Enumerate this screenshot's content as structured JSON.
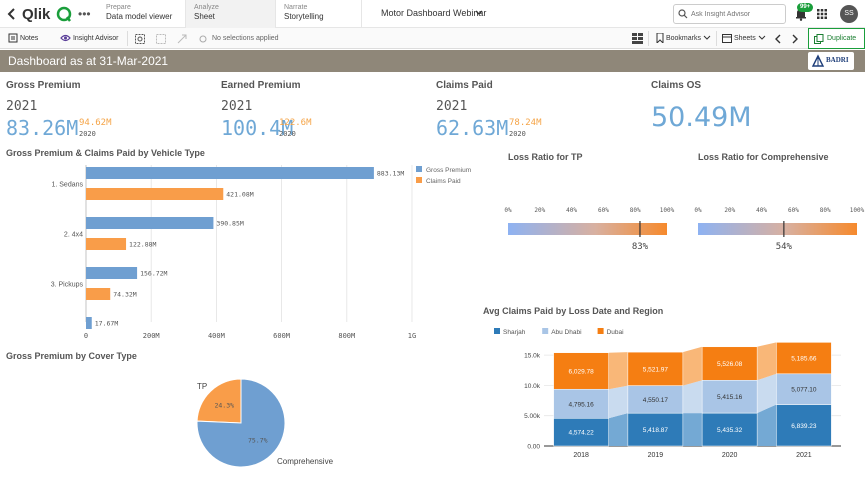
{
  "nav": {
    "prepare": {
      "sub": "Prepare",
      "main": "Data model viewer"
    },
    "analyze": {
      "sub": "Analyze",
      "main": "Sheet"
    },
    "narrate": {
      "sub": "Narrate",
      "main": "Storytelling"
    },
    "app_title": "Motor Dashboard Webinar",
    "search_placeholder": "Ask Insight Advisor",
    "notif_count": "99+",
    "avatar": "SS"
  },
  "toolbar": {
    "notes": "Notes",
    "insight": "Insight Advisor",
    "selections": "No selections applied",
    "bookmarks": "Bookmarks",
    "sheets": "Sheets",
    "duplicate": "Duplicate"
  },
  "sheet": {
    "title": "Dashboard as at 31-Mar-2021",
    "logo_text": "BADRI"
  },
  "kpis": [
    {
      "title": "Gross Premium",
      "year": "2021",
      "value": "83.26M",
      "alt_value": "94.62M",
      "alt_year": "2020"
    },
    {
      "title": "Earned Premium",
      "year": "2021",
      "value": "100.4M",
      "alt_value": "122.6M",
      "alt_year": "2020"
    },
    {
      "title": "Claims Paid",
      "year": "2021",
      "value": "62.63M",
      "alt_value": "78.24M",
      "alt_year": "2020"
    },
    {
      "title": "Claims OS",
      "value": "50.49M"
    }
  ],
  "colors": {
    "blue": "#6f9fd1",
    "orange": "#f99d49",
    "sharjah": "#2e7bb8",
    "abu_dhabi": "#a9c5e6",
    "dubai": "#f57e12"
  },
  "chart_data": [
    {
      "type": "bar",
      "title": "Gross Premium & Claims Paid by Vehicle Type",
      "orientation": "horizontal",
      "categories": [
        "1. Sedans",
        "2. 4x4",
        "3. Pickups",
        ""
      ],
      "series": [
        {
          "name": "Gross Premium",
          "values": [
            883.13,
            390.85,
            156.72,
            17.67
          ],
          "labels": [
            "883.13M",
            "390.85M",
            "156.72M",
            "17.67M"
          ]
        },
        {
          "name": "Claims Paid",
          "values": [
            421.08,
            122.88,
            74.32,
            null
          ],
          "labels": [
            "421.08M",
            "122.88M",
            "74.32M",
            ""
          ]
        }
      ],
      "xticks": [
        "0",
        "200M",
        "400M",
        "600M",
        "800M",
        "1G"
      ],
      "xlim": [
        0,
        1000
      ],
      "legend": "right"
    },
    {
      "type": "gauge",
      "title": "Loss Ratio for TP",
      "value": 83,
      "value_label": "83%",
      "ticks": [
        "0%",
        "20%",
        "40%",
        "60%",
        "80%",
        "100%"
      ]
    },
    {
      "type": "gauge",
      "title": "Loss Ratio for Comprehensive",
      "value": 54,
      "value_label": "54%",
      "ticks": [
        "0%",
        "20%",
        "40%",
        "60%",
        "80%",
        "100%"
      ]
    },
    {
      "type": "pie",
      "title": "Gross Premium by Cover Type",
      "slices": [
        {
          "name": "TP",
          "value": 24.3,
          "label": "24.3%"
        },
        {
          "name": "Comprehensive",
          "value": 75.7,
          "label": "75.7%"
        }
      ]
    },
    {
      "type": "bar",
      "stacked": true,
      "title": "Avg Claims Paid by Loss Date and Region",
      "categories": [
        "2018",
        "2019",
        "2020",
        "2021"
      ],
      "series": [
        {
          "name": "Sharjah",
          "values": [
            4574.22,
            5418.87,
            5435.32,
            6839.23
          ],
          "labels": [
            "4,574.22",
            "5,418.87",
            "5,435.32",
            "6,839.23"
          ]
        },
        {
          "name": "Abu Dhabi",
          "values": [
            4795.16,
            4550.17,
            5415.16,
            5077.1
          ],
          "labels": [
            "4,795.16",
            "4,550.17",
            "5,415.16",
            "5,077.10"
          ]
        },
        {
          "name": "Dubai",
          "values": [
            6029.78,
            5521.97,
            5526.08,
            5185.66
          ],
          "labels": [
            "6,029.78",
            "5,521.97",
            "5,526.08",
            "5,185.66"
          ]
        }
      ],
      "yticks": [
        "0.00",
        "5.00k",
        "10.0k",
        "15.0k"
      ],
      "ylim": [
        0,
        17000
      ],
      "legend": "top-left"
    }
  ]
}
